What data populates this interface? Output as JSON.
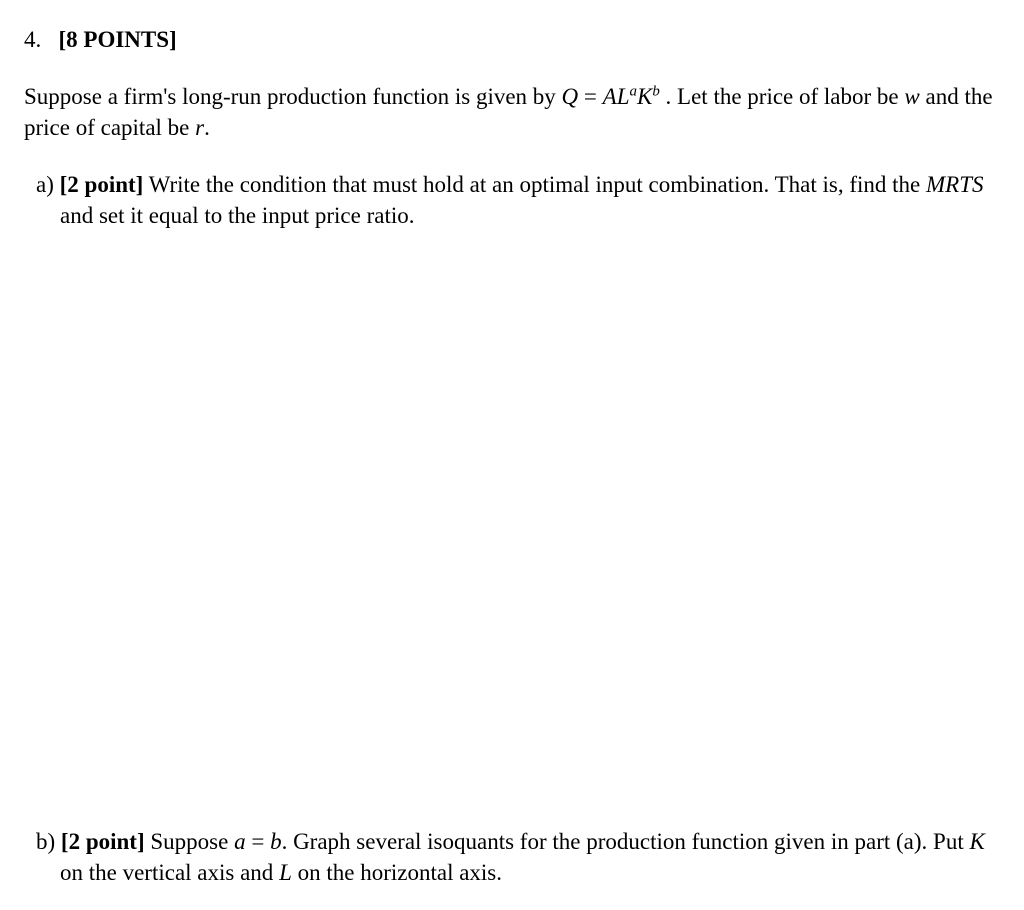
{
  "heading": {
    "number": "4.",
    "points_label": "[8 POINTS]"
  },
  "intro": {
    "pre": "Suppose a firm's long-run production function is given by ",
    "eq_Q": "Q",
    "eq_eq": " = ",
    "eq_A": "A",
    "eq_L": "L",
    "eq_a": "a",
    "eq_K": "K",
    "eq_b": "b",
    "post1": " . Let the price of labor be ",
    "w": "w",
    "post2": " and the price of capital be ",
    "r": "r",
    "post3": "."
  },
  "part_a": {
    "label": "a)",
    "points": "[2 point]",
    "text1": " Write the condition that must hold at an optimal input combination. That is, find the ",
    "mrts": "MRTS",
    "text2": " and set it equal to the input price ratio."
  },
  "part_b": {
    "label": "b)",
    "points": "[2 point]",
    "text1": " Suppose ",
    "a": "a",
    "eq": " = ",
    "b": "b",
    "text2": ". Graph several isoquants for the production function given in part (a). Put ",
    "K": "K",
    "text3": " on the vertical axis and ",
    "L": "L",
    "text4": " on the horizontal axis."
  }
}
